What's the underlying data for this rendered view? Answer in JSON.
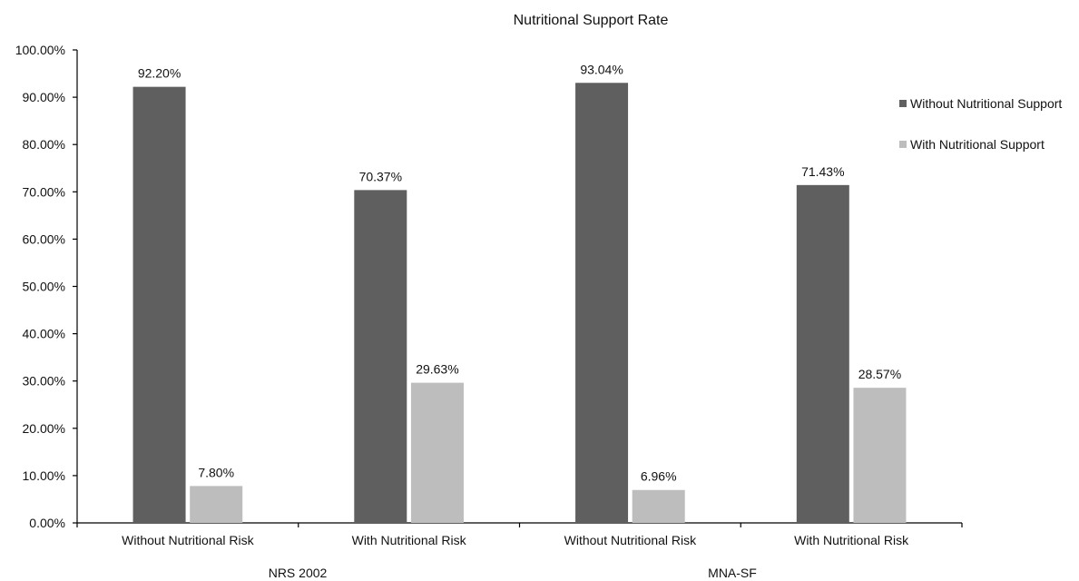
{
  "chart_data": {
    "type": "bar",
    "title": "Nutritional Support Rate",
    "xlabel": "",
    "ylabel": "",
    "ylim": [
      0,
      100
    ],
    "y_tick_labels": [
      "0.00%",
      "10.00%",
      "20.00%",
      "30.00%",
      "40.00%",
      "50.00%",
      "60.00%",
      "70.00%",
      "80.00%",
      "90.00%",
      "100.00%"
    ],
    "categories": [
      "Without Nutritional Risk",
      "With Nutritional Risk",
      "Without Nutritional Risk",
      "With Nutritional Risk"
    ],
    "groups": [
      "NRS 2002",
      "MNA-SF"
    ],
    "series": [
      {
        "name": "Without Nutritional Support",
        "color": "#5f5f5f",
        "values": [
          92.2,
          70.37,
          93.04,
          71.43
        ],
        "labels": [
          "92.20%",
          "70.37%",
          "93.04%",
          "71.43%"
        ]
      },
      {
        "name": "With Nutritional Support",
        "color": "#bdbdbd",
        "values": [
          7.8,
          29.63,
          6.96,
          28.57
        ],
        "labels": [
          "7.80%",
          "29.63%",
          "6.96%",
          "28.57%"
        ]
      }
    ],
    "legend_position": "right",
    "grid": false
  }
}
